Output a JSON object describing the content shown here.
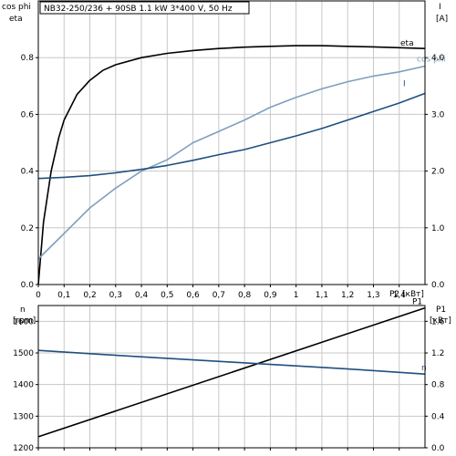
{
  "chart_data": [
    {
      "type": "line",
      "title": "NB32-250/236 + 90SB   1.1 kW   3*400 V, 50 Hz",
      "x": {
        "label": "P2 [кВт]",
        "range": [
          0,
          1.5
        ],
        "ticks": [
          "0",
          "0,1",
          "0,2",
          "0,3",
          "0,4",
          "0,5",
          "0,6",
          "0,7",
          "0,8",
          "0,9",
          "1",
          "1,1",
          "1,2",
          "1,3",
          "1,4"
        ]
      },
      "y_left": {
        "label_line1": "cos phi",
        "label_line2": "eta",
        "range": [
          0,
          1.0
        ],
        "ticks": [
          "0.0",
          "0.2",
          "0.4",
          "0.6",
          "0.8"
        ]
      },
      "y_right": {
        "label_line1": "I",
        "label_line2": "[A]",
        "range": [
          0,
          5.0
        ],
        "ticks": [
          "0.0",
          "1.0",
          "2.0",
          "3.0",
          "4.0"
        ]
      },
      "grid": true,
      "series": [
        {
          "name": "eta",
          "axis": "left",
          "color": "#000000",
          "x": [
            0.0,
            0.02,
            0.05,
            0.08,
            0.1,
            0.15,
            0.2,
            0.25,
            0.3,
            0.4,
            0.5,
            0.6,
            0.7,
            0.8,
            0.9,
            1.0,
            1.1,
            1.2,
            1.3,
            1.4,
            1.5
          ],
          "y": [
            0.0,
            0.22,
            0.4,
            0.52,
            0.58,
            0.67,
            0.72,
            0.755,
            0.775,
            0.8,
            0.815,
            0.825,
            0.832,
            0.837,
            0.84,
            0.842,
            0.842,
            0.84,
            0.838,
            0.835,
            0.832
          ]
        },
        {
          "name": "cos phi",
          "axis": "left",
          "color": "#7f9fbf",
          "x": [
            0.0,
            0.1,
            0.2,
            0.3,
            0.4,
            0.5,
            0.6,
            0.7,
            0.8,
            0.9,
            1.0,
            1.1,
            1.2,
            1.3,
            1.4,
            1.5
          ],
          "y": [
            0.09,
            0.18,
            0.27,
            0.34,
            0.4,
            0.44,
            0.5,
            0.54,
            0.58,
            0.625,
            0.66,
            0.69,
            0.715,
            0.735,
            0.75,
            0.77
          ]
        },
        {
          "name": "I",
          "axis": "right",
          "color": "#1f4f7f",
          "x": [
            0.0,
            0.1,
            0.2,
            0.3,
            0.4,
            0.5,
            0.6,
            0.7,
            0.8,
            0.9,
            1.0,
            1.1,
            1.2,
            1.3,
            1.4,
            1.5
          ],
          "y": [
            1.87,
            1.89,
            1.92,
            1.97,
            2.03,
            2.1,
            2.19,
            2.29,
            2.38,
            2.5,
            2.62,
            2.75,
            2.9,
            3.05,
            3.2,
            3.37
          ]
        }
      ]
    },
    {
      "type": "line",
      "x": {
        "range": [
          0,
          1.5
        ],
        "ticks": [
          "0",
          "0,1",
          "0,2",
          "0,3",
          "0,4",
          "0,5",
          "0,6",
          "0,7",
          "0,8",
          "0,9",
          "1",
          "1,1",
          "1,2",
          "1,3",
          "1,4"
        ]
      },
      "y_left": {
        "label_line1": "n",
        "label_line2": "[rpm]",
        "range": [
          1200,
          1650
        ],
        "ticks": [
          "1200",
          "1300",
          "1400",
          "1500",
          "1600"
        ]
      },
      "y_right": {
        "label_line1": "P1",
        "label_line2": "[кВт]",
        "range": [
          0,
          1.8
        ],
        "ticks": [
          "0.0",
          "0.4",
          "0.8",
          "1.2",
          "1.6"
        ]
      },
      "grid": true,
      "series": [
        {
          "name": "P1",
          "axis": "right",
          "color": "#000000",
          "x": [
            0.0,
            1.5
          ],
          "y": [
            0.14,
            1.77
          ]
        },
        {
          "name": "n",
          "axis": "left",
          "color": "#1f4f7f",
          "x": [
            0.0,
            0.25,
            0.5,
            0.75,
            1.0,
            1.25,
            1.5
          ],
          "y": [
            1508,
            1495,
            1483,
            1471,
            1459,
            1447,
            1433
          ]
        }
      ]
    }
  ]
}
